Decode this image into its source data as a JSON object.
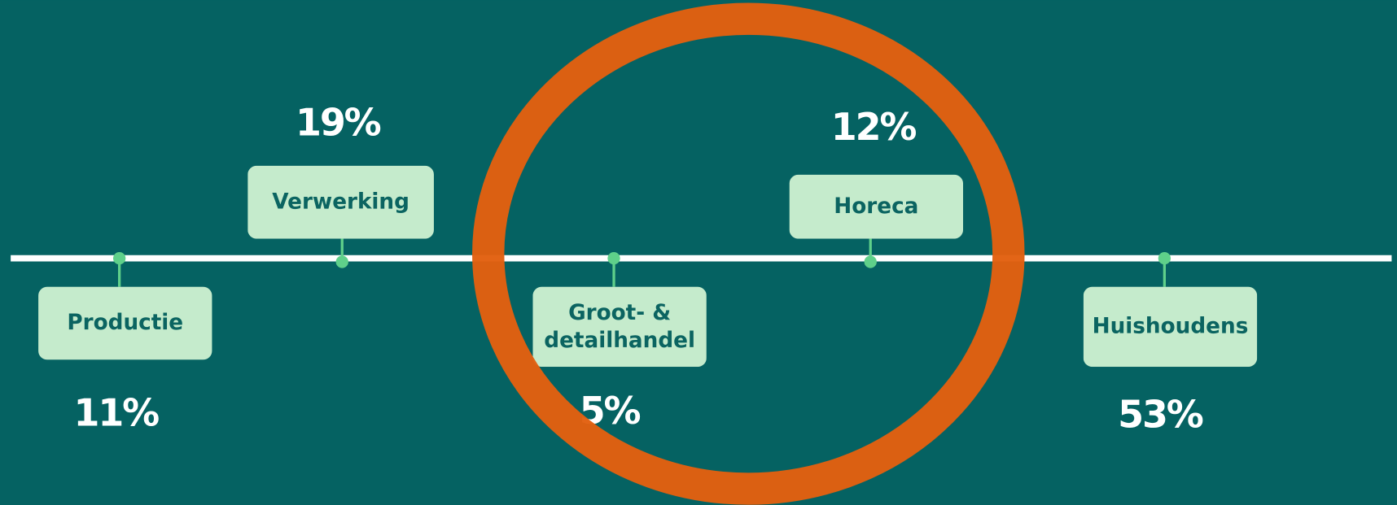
{
  "nodes": [
    {
      "label": "Productie",
      "value": "11%"
    },
    {
      "label": "Verwerking",
      "value": "19%"
    },
    {
      "label": "Groot- & detailhandel",
      "value": "5%"
    },
    {
      "label": "Horeca",
      "value": "12%"
    },
    {
      "label": "Huishoudens",
      "value": "53%"
    }
  ]
}
